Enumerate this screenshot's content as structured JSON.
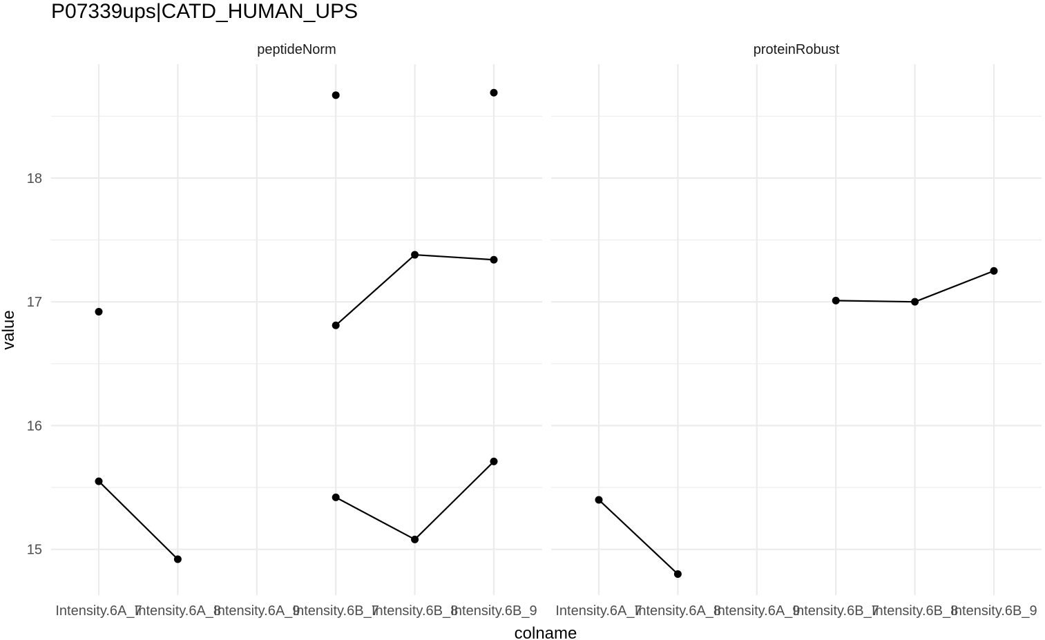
{
  "chart_data": {
    "type": "line",
    "title": "P07339ups|CATD_HUMAN_UPS",
    "xlabel": "colname",
    "ylabel": "value",
    "categories": [
      "Intensity.6A_7",
      "Intensity.6A_8",
      "Intensity.6A_9",
      "Intensity.6B_7",
      "Intensity.6B_8",
      "Intensity.6B_9"
    ],
    "ylim": [
      14.63,
      18.92
    ],
    "yticks": [
      15,
      16,
      17,
      18
    ],
    "grid": true,
    "legend": "none",
    "facets": [
      {
        "label": "peptideNorm",
        "series": [
          {
            "values": [
              16.92,
              null,
              null,
              18.67,
              null,
              18.69
            ]
          },
          {
            "values": [
              15.55,
              14.92,
              null,
              15.42,
              15.08,
              15.71
            ]
          },
          {
            "values": [
              null,
              null,
              null,
              16.81,
              17.38,
              17.34
            ]
          }
        ]
      },
      {
        "label": "proteinRobust",
        "series": [
          {
            "values": [
              15.4,
              14.8,
              null,
              17.01,
              17.0,
              17.25
            ]
          }
        ]
      }
    ]
  }
}
